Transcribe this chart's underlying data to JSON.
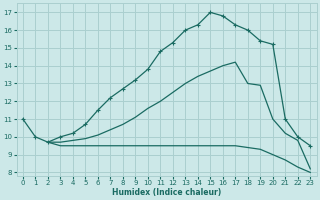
{
  "xlabel": "Humidex (Indice chaleur)",
  "bg_color": "#cce8e8",
  "line_color": "#1a6b62",
  "grid_color": "#aacfcf",
  "xlim": [
    -0.5,
    23.5
  ],
  "ylim": [
    7.8,
    17.5
  ],
  "xticks": [
    0,
    1,
    2,
    3,
    4,
    5,
    6,
    7,
    8,
    9,
    10,
    11,
    12,
    13,
    14,
    15,
    16,
    17,
    18,
    19,
    20,
    21,
    22,
    23
  ],
  "yticks": [
    8,
    9,
    10,
    11,
    12,
    13,
    14,
    15,
    16,
    17
  ],
  "top_x": [
    0,
    1,
    2,
    3,
    4,
    5,
    6,
    7,
    8,
    9,
    10,
    11,
    12,
    13,
    14,
    15,
    16,
    17,
    18,
    19,
    20,
    21,
    22,
    23
  ],
  "top_y": [
    11,
    10,
    9.7,
    10.0,
    10.2,
    10.7,
    11.5,
    12.2,
    12.7,
    13.2,
    13.8,
    14.8,
    15.3,
    16.0,
    16.3,
    17.0,
    16.8,
    16.3,
    16.0,
    15.4,
    15.2,
    11.0,
    10.0,
    9.5
  ],
  "mid_x": [
    2,
    3,
    4,
    5,
    6,
    7,
    8,
    9,
    10,
    11,
    12,
    13,
    14,
    15,
    16,
    17,
    18,
    19,
    20,
    21,
    22,
    23
  ],
  "mid_y": [
    9.7,
    9.7,
    9.8,
    9.9,
    10.1,
    10.4,
    10.7,
    11.1,
    11.6,
    12.0,
    12.5,
    13.0,
    13.4,
    13.7,
    14.0,
    14.2,
    13.0,
    12.9,
    11.0,
    10.2,
    9.8,
    8.2
  ],
  "bot_x": [
    2,
    3,
    4,
    5,
    6,
    7,
    8,
    9,
    10,
    11,
    12,
    13,
    14,
    15,
    16,
    17,
    18,
    19,
    20,
    21,
    22,
    23
  ],
  "bot_y": [
    9.7,
    9.5,
    9.5,
    9.5,
    9.5,
    9.5,
    9.5,
    9.5,
    9.5,
    9.5,
    9.5,
    9.5,
    9.5,
    9.5,
    9.5,
    9.5,
    9.4,
    9.3,
    9.0,
    8.7,
    8.3,
    8.0
  ]
}
